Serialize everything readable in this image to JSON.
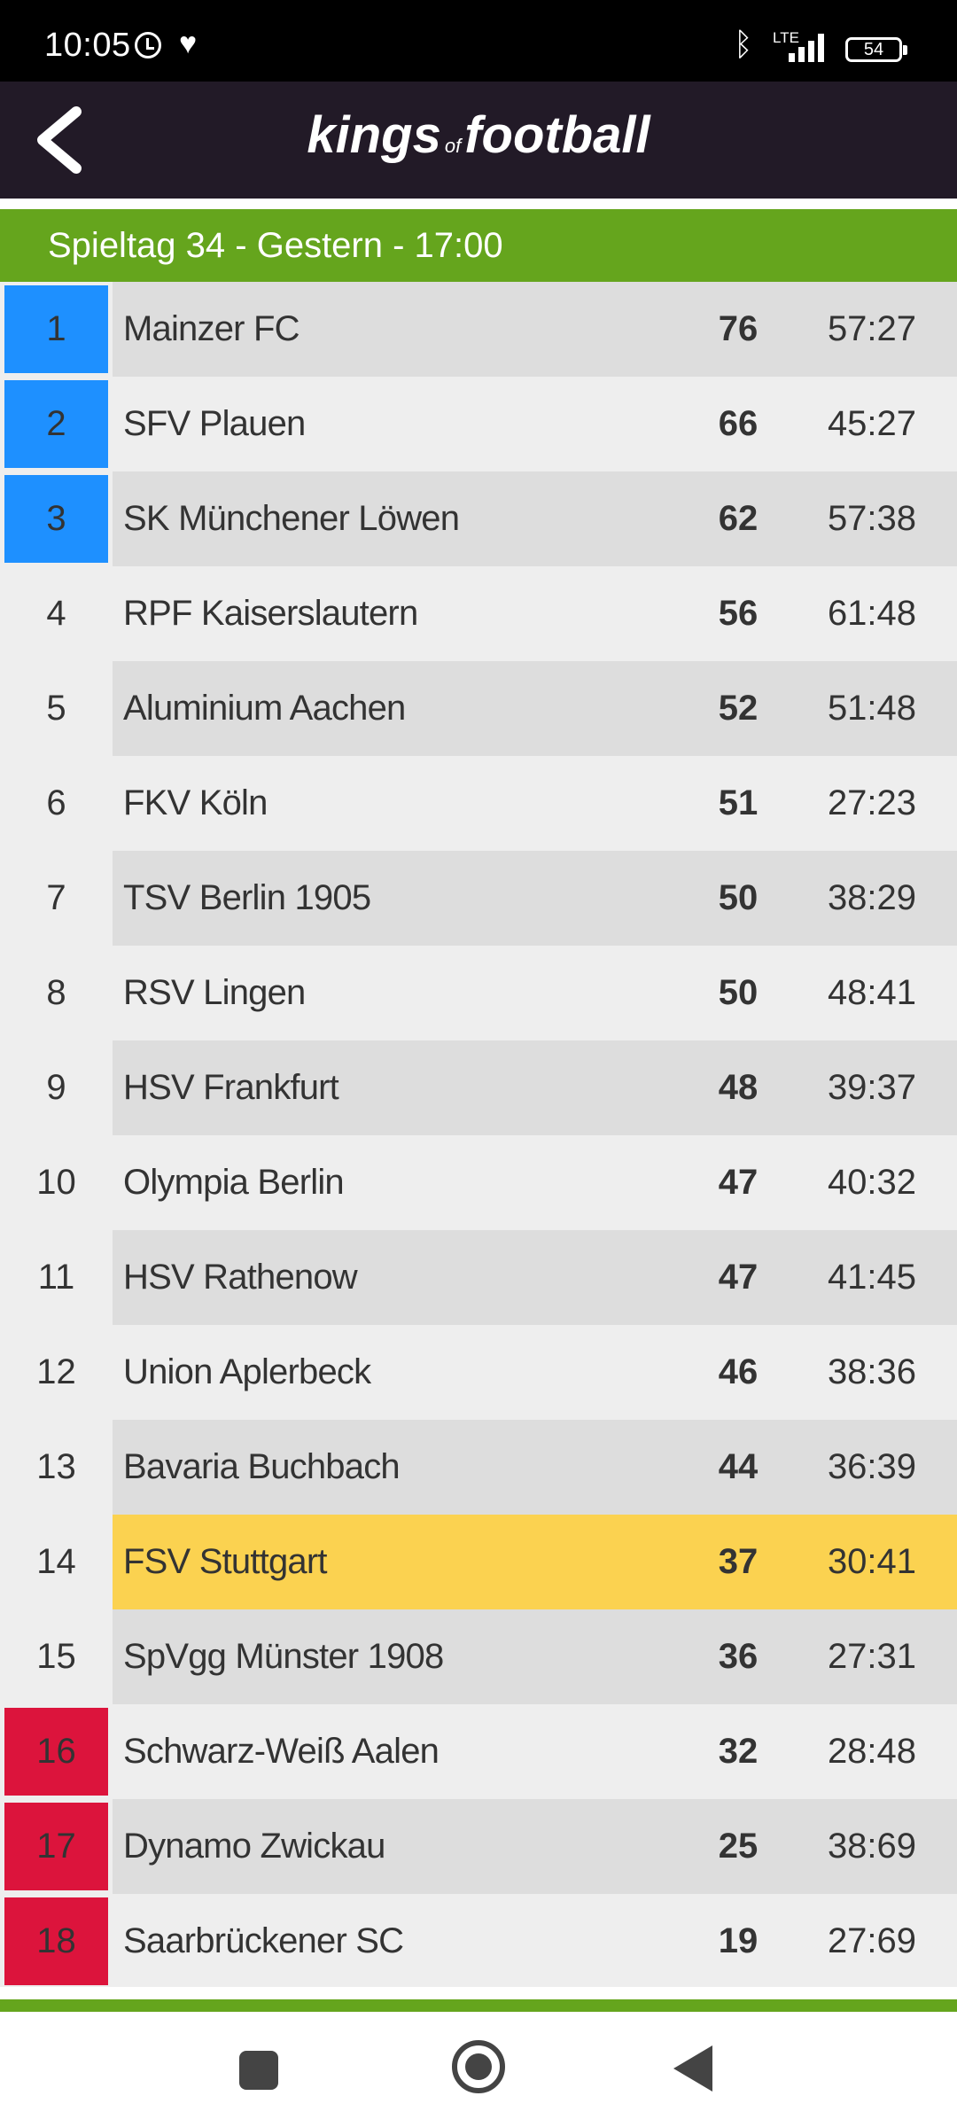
{
  "status_bar": {
    "time": "10:05",
    "network": "LTE",
    "battery": "54",
    "icons": [
      "alarm-icon",
      "heart-icon",
      "bluetooth-icon",
      "signal-icon",
      "battery-icon"
    ]
  },
  "header": {
    "logo_part1": "kings",
    "logo_of": "of",
    "logo_part2": "football",
    "back_icon": "back-chevron-icon"
  },
  "matchday": {
    "label": "Spieltag 34 - Gestern - 17:00"
  },
  "colors": {
    "header_bg": "#221a27",
    "banner_green": "#65a51d",
    "promotion_blue": "#1e90ff",
    "relegation_red": "#dc143c",
    "highlight_yellow": "#fbd250"
  },
  "standings": [
    {
      "rank": "1",
      "team": "Mainzer FC",
      "points": "76",
      "goals": "57:27",
      "zone": "promotion"
    },
    {
      "rank": "2",
      "team": "SFV Plauen",
      "points": "66",
      "goals": "45:27",
      "zone": "promotion"
    },
    {
      "rank": "3",
      "team": "SK Münchener Löwen",
      "points": "62",
      "goals": "57:38",
      "zone": "promotion"
    },
    {
      "rank": "4",
      "team": "RPF Kaiserslautern",
      "points": "56",
      "goals": "61:48",
      "zone": ""
    },
    {
      "rank": "5",
      "team": "Aluminium Aachen",
      "points": "52",
      "goals": "51:48",
      "zone": ""
    },
    {
      "rank": "6",
      "team": "FKV Köln",
      "points": "51",
      "goals": "27:23",
      "zone": ""
    },
    {
      "rank": "7",
      "team": "TSV Berlin 1905",
      "points": "50",
      "goals": "38:29",
      "zone": ""
    },
    {
      "rank": "8",
      "team": "RSV Lingen",
      "points": "50",
      "goals": "48:41",
      "zone": ""
    },
    {
      "rank": "9",
      "team": "HSV Frankfurt",
      "points": "48",
      "goals": "39:37",
      "zone": ""
    },
    {
      "rank": "10",
      "team": "Olympia Berlin",
      "points": "47",
      "goals": "40:32",
      "zone": ""
    },
    {
      "rank": "11",
      "team": "HSV Rathenow",
      "points": "47",
      "goals": "41:45",
      "zone": ""
    },
    {
      "rank": "12",
      "team": "Union Aplerbeck",
      "points": "46",
      "goals": "38:36",
      "zone": ""
    },
    {
      "rank": "13",
      "team": "Bavaria Buchbach",
      "points": "44",
      "goals": "36:39",
      "zone": ""
    },
    {
      "rank": "14",
      "team": "FSV Stuttgart",
      "points": "37",
      "goals": "30:41",
      "zone": "",
      "highlight": true
    },
    {
      "rank": "15",
      "team": "SpVgg Münster 1908",
      "points": "36",
      "goals": "27:31",
      "zone": ""
    },
    {
      "rank": "16",
      "team": "Schwarz-Weiß Aalen",
      "points": "32",
      "goals": "28:48",
      "zone": "relegation"
    },
    {
      "rank": "17",
      "team": "Dynamo Zwickau",
      "points": "25",
      "goals": "38:69",
      "zone": "relegation"
    },
    {
      "rank": "18",
      "team": "Saarbrückener SC",
      "points": "19",
      "goals": "27:69",
      "zone": "relegation"
    }
  ]
}
